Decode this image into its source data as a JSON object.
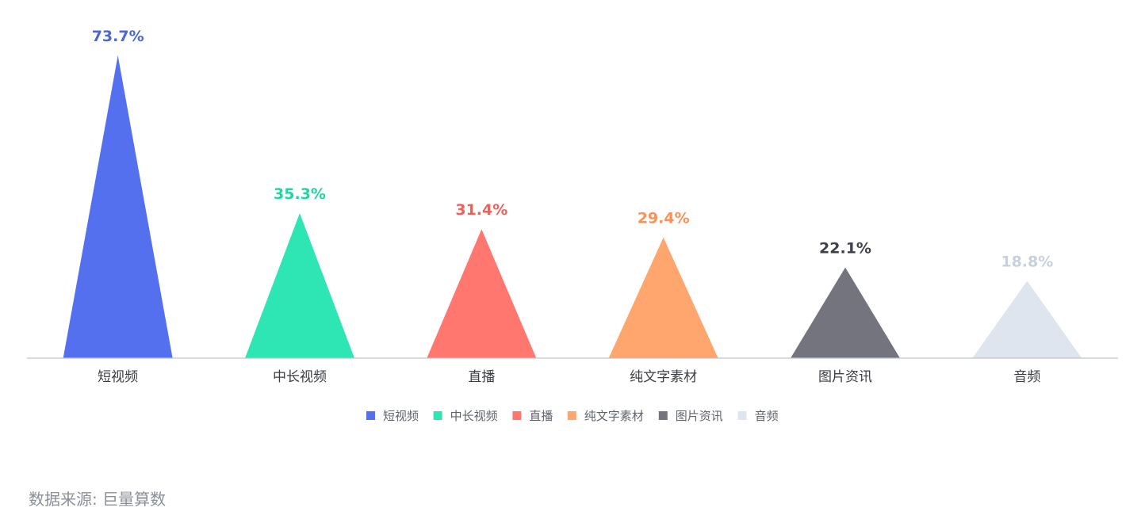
{
  "chart_data": {
    "type": "bar",
    "categories": [
      "短视频",
      "中长视频",
      "直播",
      "纯文字素材",
      "图片资讯",
      "音频"
    ],
    "values": [
      73.7,
      35.3,
      31.4,
      29.4,
      22.1,
      18.8
    ],
    "value_labels": [
      "73.7%",
      "35.3%",
      "31.4%",
      "29.4%",
      "22.1%",
      "18.8%"
    ],
    "unit": "%",
    "ylim": [
      0,
      73.7
    ],
    "grid": false,
    "legend_position": "bottom-center",
    "colors": [
      "#5470ee",
      "#2ee6b3",
      "#ff776e",
      "#ffa56e",
      "#73747d",
      "#dfe5ee"
    ],
    "label_colors": [
      "#4b66d8",
      "#1fd6a2",
      "#f2605a",
      "#fb9156",
      "#3f414a",
      "#c9d0dc"
    ]
  },
  "legend": {
    "items": [
      "短视频",
      "中长视频",
      "直播",
      "纯文字素材",
      "图片资讯",
      "音频"
    ]
  },
  "footer": {
    "source": "数据来源: 巨量算数"
  }
}
